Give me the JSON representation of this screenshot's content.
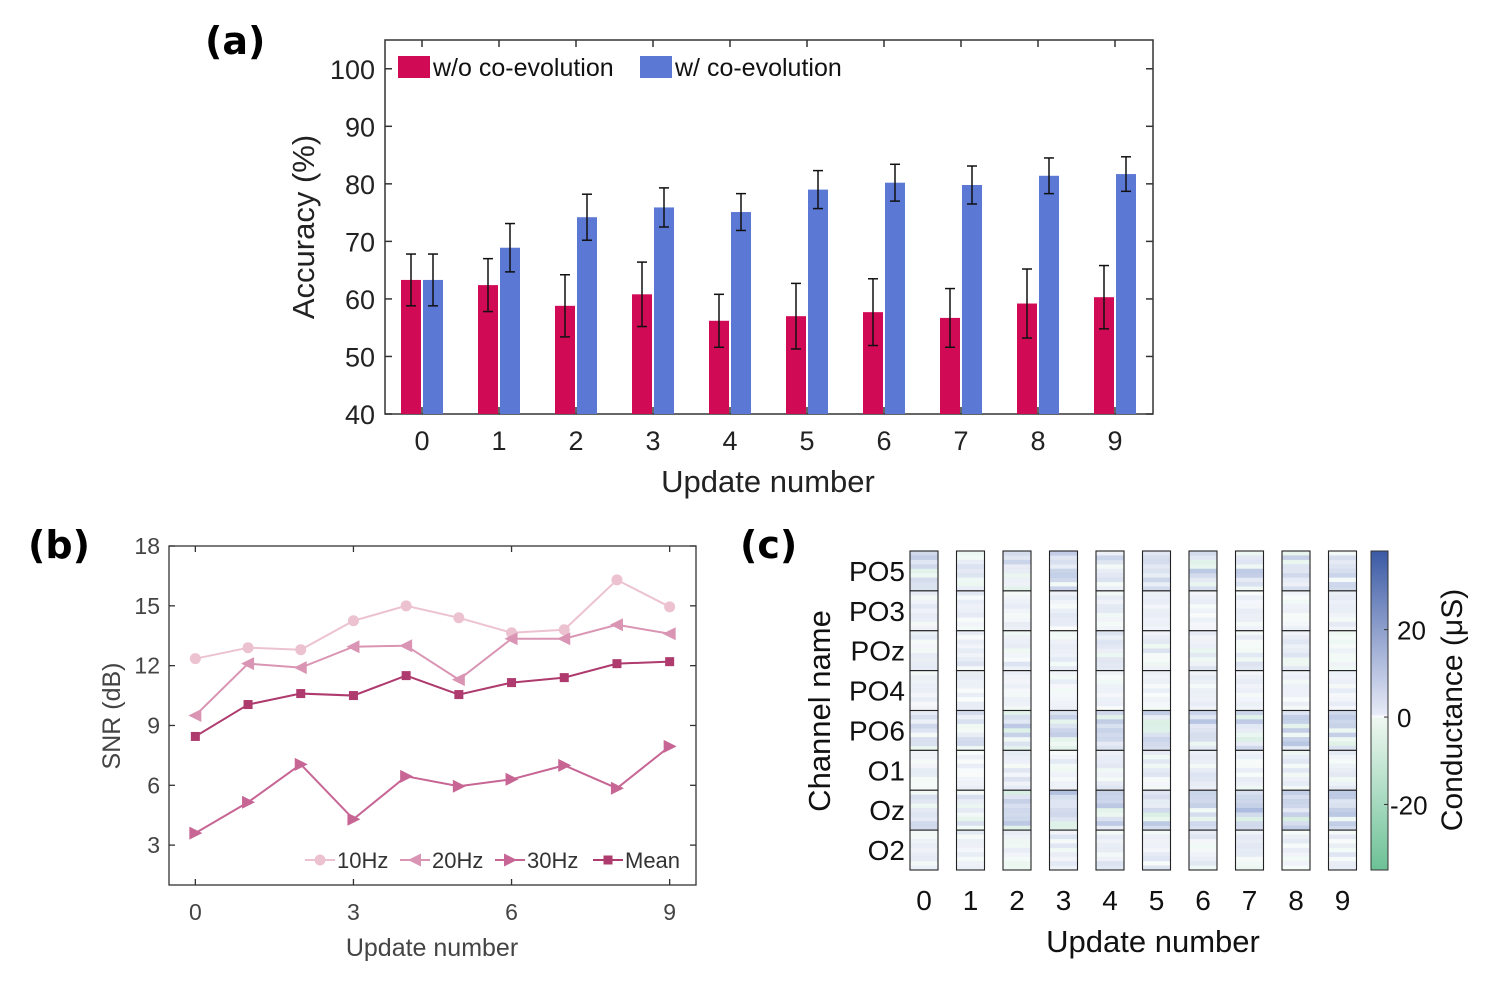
{
  "panels": {
    "a": "(a)",
    "b": "(b)",
    "c": "(c)"
  },
  "chart_data": [
    {
      "type": "bar",
      "panel": "a",
      "title": "",
      "xlabel": "Update number",
      "ylabel": "Accuracy (%)",
      "ylim": [
        40,
        105
      ],
      "yticks": [
        40,
        50,
        60,
        70,
        80,
        90,
        100
      ],
      "categories": [
        "0",
        "1",
        "2",
        "3",
        "4",
        "5",
        "6",
        "7",
        "8",
        "9"
      ],
      "legend_position": "top-left",
      "series": [
        {
          "name": "w/o co-evolution",
          "color": "#d10a55",
          "values": [
            63.3,
            62.4,
            58.8,
            60.8,
            56.2,
            57.0,
            57.7,
            56.7,
            59.2,
            60.3
          ],
          "errors": [
            4.5,
            4.6,
            5.4,
            5.6,
            4.6,
            5.7,
            5.8,
            5.1,
            6.0,
            5.5
          ]
        },
        {
          "name": "w/  co-evolution",
          "color": "#5b78d4",
          "values": [
            63.3,
            68.9,
            74.2,
            75.9,
            75.1,
            79.0,
            80.2,
            79.8,
            81.4,
            81.7
          ],
          "errors": [
            4.5,
            4.2,
            4.0,
            3.4,
            3.2,
            3.3,
            3.2,
            3.3,
            3.1,
            3.0
          ]
        }
      ]
    },
    {
      "type": "line",
      "panel": "b",
      "title": "",
      "xlabel": "Update number",
      "ylabel": "SNR (dB)",
      "xlim": [
        -0.5,
        9.5
      ],
      "ylim": [
        1,
        18
      ],
      "xticks": [
        0,
        3,
        6,
        9
      ],
      "yticks": [
        3,
        6,
        9,
        12,
        15,
        18
      ],
      "x": [
        0,
        1,
        2,
        3,
        4,
        5,
        6,
        7,
        8,
        9
      ],
      "legend_position": "bottom",
      "series": [
        {
          "name": "10Hz",
          "color": "#ecc2d0",
          "marker": "circle",
          "values": [
            12.35,
            12.9,
            12.8,
            14.25,
            15.0,
            14.4,
            13.65,
            13.8,
            16.3,
            14.95
          ]
        },
        {
          "name": "20Hz",
          "color": "#d995b3",
          "marker": "triangle-left",
          "values": [
            9.5,
            12.1,
            11.9,
            12.95,
            13.0,
            11.3,
            13.35,
            13.35,
            14.05,
            13.6
          ]
        },
        {
          "name": "30Hz",
          "color": "#c76594",
          "marker": "triangle-right",
          "values": [
            3.6,
            5.15,
            7.05,
            4.3,
            6.45,
            5.95,
            6.3,
            7.0,
            5.85,
            7.95
          ]
        },
        {
          "name": "Mean",
          "color": "#ae3a6e",
          "marker": "square",
          "values": [
            8.45,
            10.05,
            10.6,
            10.5,
            11.5,
            10.55,
            11.15,
            11.4,
            12.1,
            12.2
          ]
        }
      ]
    },
    {
      "type": "heatmap",
      "panel": "c",
      "title": "",
      "xlabel": "Update  number",
      "ylabel": "Channel name",
      "colorbar_label": "Conductance (μS)",
      "colorbar_ticks": [
        "20",
        "0",
        "-20"
      ],
      "colorbar_tick_values": [
        20,
        0,
        -20
      ],
      "colorbar_range": [
        -35,
        38
      ],
      "colormap": {
        "low": "#6cc196",
        "zero": "#ffffff",
        "high": "#3b5aa5"
      },
      "columns": [
        "0",
        "1",
        "2",
        "3",
        "4",
        "5",
        "6",
        "7",
        "8",
        "9"
      ],
      "rows": [
        "PO5",
        "PO3",
        "POz",
        "PO4",
        "PO6",
        "O1",
        "Oz",
        "O2"
      ],
      "relative_intensity": [
        [
          0.55,
          0.35,
          0.45,
          0.55,
          0.5,
          0.55,
          0.55,
          0.55,
          0.55,
          0.5
        ],
        [
          0.25,
          0.25,
          0.25,
          0.25,
          0.25,
          0.25,
          0.25,
          0.25,
          0.25,
          0.25
        ],
        [
          0.3,
          0.3,
          0.3,
          0.35,
          0.35,
          0.35,
          0.35,
          0.3,
          0.35,
          0.35
        ],
        [
          0.22,
          0.22,
          0.22,
          0.22,
          0.22,
          0.22,
          0.22,
          0.22,
          0.22,
          0.22
        ],
        [
          0.45,
          0.4,
          0.6,
          0.65,
          0.65,
          0.65,
          0.65,
          0.65,
          0.65,
          0.65
        ],
        [
          0.25,
          0.25,
          0.3,
          0.3,
          0.3,
          0.3,
          0.3,
          0.3,
          0.3,
          0.3
        ],
        [
          0.5,
          0.45,
          0.65,
          0.7,
          0.7,
          0.7,
          0.7,
          0.7,
          0.7,
          0.7
        ],
        [
          0.25,
          0.25,
          0.3,
          0.3,
          0.3,
          0.3,
          0.3,
          0.3,
          0.3,
          0.3
        ]
      ]
    }
  ]
}
